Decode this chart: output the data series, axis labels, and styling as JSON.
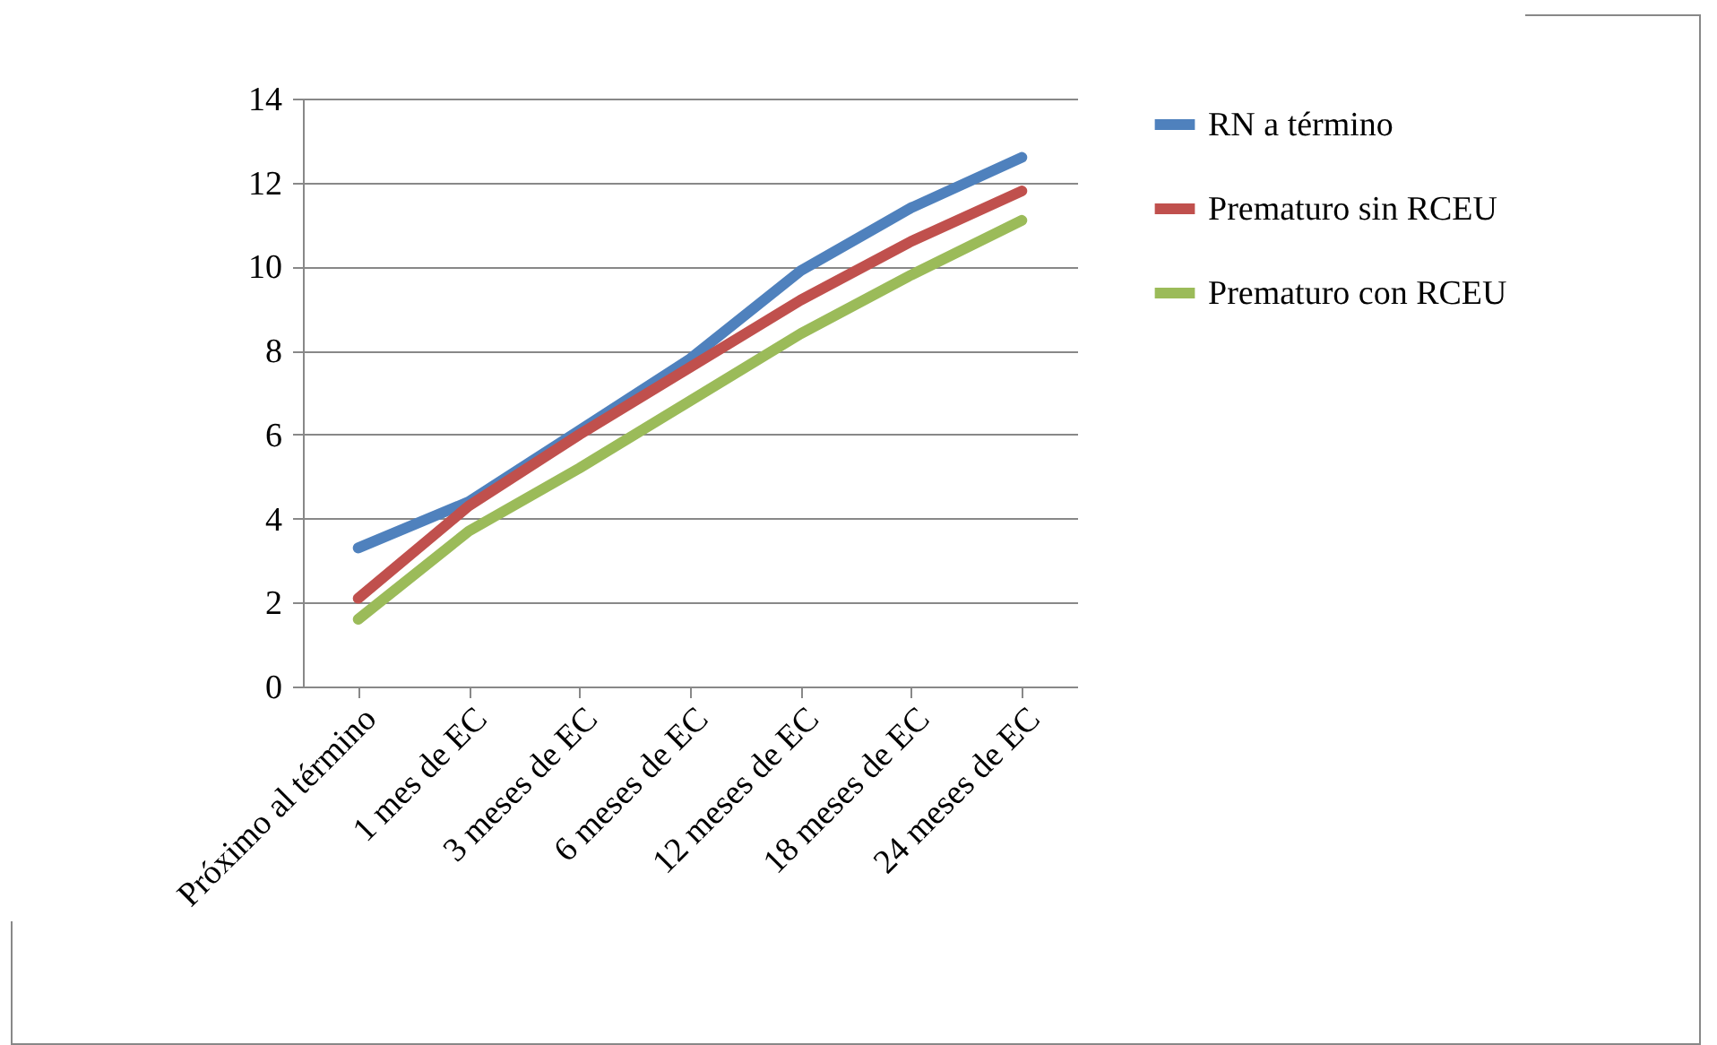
{
  "chart_data": {
    "type": "line",
    "categories": [
      "Próximo al término",
      "1 mes de EC",
      "3 meses de EC",
      "6 meses de EC",
      "12 meses de EC",
      "18 meses de EC",
      "24 meses de EC"
    ],
    "series": [
      {
        "name": "RN a término",
        "color": "#4f81bd",
        "values": [
          3.3,
          4.4,
          6.1,
          7.8,
          9.9,
          11.4,
          12.6
        ]
      },
      {
        "name": "Prematuro sin RCEU",
        "color": "#c0504d",
        "values": [
          2.1,
          4.3,
          6.0,
          7.6,
          9.2,
          10.6,
          11.8
        ]
      },
      {
        "name": "Prematuro con RCEU",
        "color": "#9bbb59",
        "values": [
          1.6,
          3.7,
          5.2,
          6.8,
          8.4,
          9.8,
          11.1
        ]
      }
    ],
    "ylim": [
      0,
      14
    ],
    "yticks": [
      0,
      2,
      4,
      6,
      8,
      10,
      12,
      14
    ],
    "grid": "y",
    "legend": "right",
    "marker": "none",
    "line_style": "solid"
  }
}
